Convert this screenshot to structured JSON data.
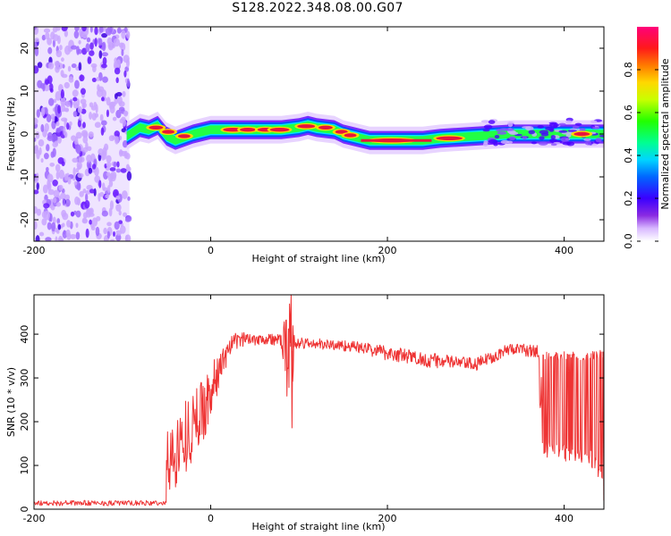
{
  "figure": {
    "title": "S128.2022.348.08.00.G07"
  },
  "colors": {
    "snr_line": "#ee3333",
    "ridge_core": "#e8143c",
    "noise_purple": "#7a2bff",
    "frame": "#000000"
  },
  "chart_data": [
    {
      "type": "heatmap",
      "name": "spectrogram",
      "xlabel": "Height of straight line (km)",
      "ylabel": "Frequency (Hz)",
      "xlim": [
        -200,
        445
      ],
      "ylim": [
        -25,
        25
      ],
      "xticks": [
        -200,
        0,
        200,
        400
      ],
      "yticks": [
        -20,
        -10,
        0,
        10,
        20
      ],
      "noise_region_x": [
        -200,
        -92
      ],
      "ridge": {
        "description_points_x": [
          -95,
          -80,
          -70,
          -60,
          -50,
          -40,
          -20,
          0,
          20,
          40,
          60,
          80,
          100,
          110,
          120,
          140,
          150,
          160,
          180,
          200,
          240,
          260,
          300,
          340,
          380,
          445
        ],
        "description_points_y": [
          -0.5,
          1.5,
          1.0,
          2.0,
          -0.5,
          -1.5,
          0.0,
          1.0,
          1.0,
          1.0,
          1.0,
          1.0,
          1.5,
          2.0,
          1.5,
          1.0,
          0.0,
          -0.5,
          -1.5,
          -1.5,
          -1.5,
          -1.0,
          -0.5,
          0.0,
          0.0,
          0.0
        ]
      },
      "colorbar": {
        "label": "Normalized spectral amplitude",
        "range": [
          0,
          1
        ],
        "ticks": [
          "0.0",
          "0.2",
          "0.4",
          "0.6",
          "0.8"
        ],
        "tick_values": [
          0.0,
          0.2,
          0.4,
          0.6,
          0.8
        ]
      }
    },
    {
      "type": "line",
      "name": "snr",
      "xlabel": "Height of straight line (km)",
      "ylabel": "SNR (10 * v/v)",
      "xlim": [
        -200,
        445
      ],
      "ylim": [
        0,
        490
      ],
      "xticks": [
        -200,
        0,
        200,
        400
      ],
      "yticks": [
        0,
        100,
        200,
        300,
        400
      ],
      "series": [
        {
          "x": [
            -200,
            -160,
            -120,
            -90,
            -70,
            -56,
            -52,
            -48,
            -40,
            -30,
            -20,
            -10,
            0,
            10,
            20,
            30,
            40,
            60,
            80,
            90,
            92,
            95,
            100,
            120,
            160,
            200,
            220,
            260,
            280,
            300,
            320,
            340,
            360,
            374,
            376,
            400,
            420,
            430,
            440,
            445
          ],
          "y": [
            12,
            12,
            14,
            13,
            15,
            18,
            60,
            90,
            120,
            160,
            200,
            220,
            240,
            300,
            340,
            380,
            395,
            395,
            390,
            390,
            400,
            380,
            378,
            375,
            370,
            360,
            345,
            340,
            335,
            330,
            345,
            365,
            360,
            355,
            240,
            240,
            240,
            240,
            240,
            240
          ],
          "band_x": [
            -50,
            445
          ],
          "band": [
            [
              -50,
              20,
              180
            ],
            [
              -40,
              50,
              210
            ],
            [
              -30,
              80,
              250
            ],
            [
              -20,
              110,
              270
            ],
            [
              -10,
              150,
              300
            ],
            [
              0,
              200,
              330
            ],
            [
              10,
              280,
              360
            ],
            [
              20,
              340,
              390
            ],
            [
              30,
              365,
              405
            ],
            [
              40,
              375,
              405
            ],
            [
              60,
              375,
              405
            ],
            [
              80,
              370,
              400
            ],
            [
              90,
              185,
              490
            ],
            [
              95,
              365,
              395
            ],
            [
              120,
              365,
              390
            ],
            [
              160,
              360,
              385
            ],
            [
              200,
              340,
              375
            ],
            [
              240,
              325,
              360
            ],
            [
              280,
              320,
              350
            ],
            [
              300,
              315,
              345
            ],
            [
              320,
              335,
              365
            ],
            [
              340,
              355,
              380
            ],
            [
              370,
              345,
              375
            ],
            [
              375,
              120,
              360
            ],
            [
              400,
              110,
              360
            ],
            [
              430,
              100,
              360
            ],
            [
              445,
              50,
              365
            ]
          ]
        }
      ]
    }
  ]
}
